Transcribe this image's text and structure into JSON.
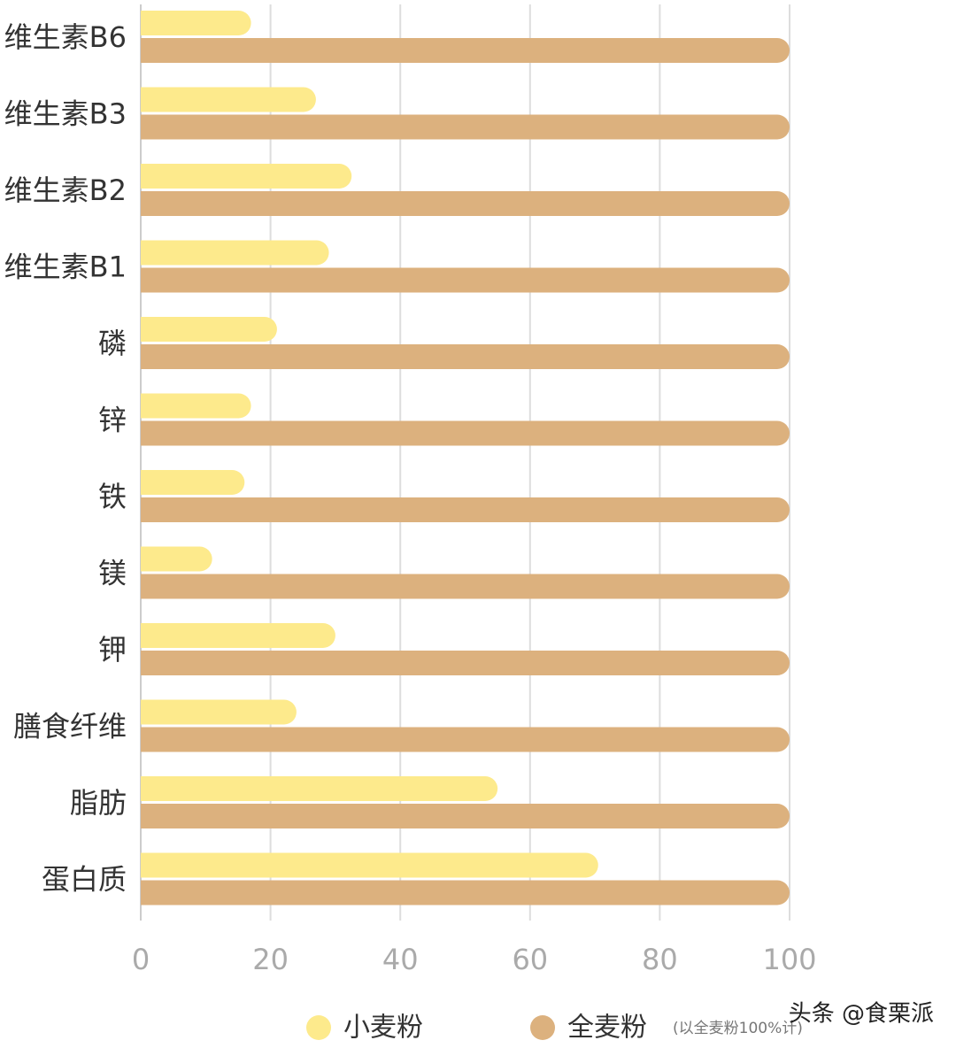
{
  "chart_data": {
    "type": "bar",
    "orientation": "horizontal",
    "categories": [
      "维生素B6",
      "维生素B3",
      "维生素B2",
      "维生素B1",
      "磷",
      "锌",
      "铁",
      "镁",
      "钾",
      "膳食纤维",
      "脂肪",
      "蛋白质"
    ],
    "series": [
      {
        "name": "小麦粉",
        "color": "#fdea8c",
        "values": [
          17,
          27,
          32.5,
          29,
          21,
          17,
          16,
          11,
          30,
          24,
          55,
          70.5
        ]
      },
      {
        "name": "全麦粉",
        "color": "#dcb17e",
        "values": [
          100,
          100,
          100,
          100,
          100,
          100,
          100,
          100,
          100,
          100,
          100,
          100
        ]
      }
    ],
    "xlim": [
      0,
      100
    ],
    "xticks": [
      0,
      20,
      40,
      60,
      80,
      100
    ],
    "grid": true,
    "note": "(以全麦粉100%计)",
    "watermark": "头条 @食栗派"
  }
}
